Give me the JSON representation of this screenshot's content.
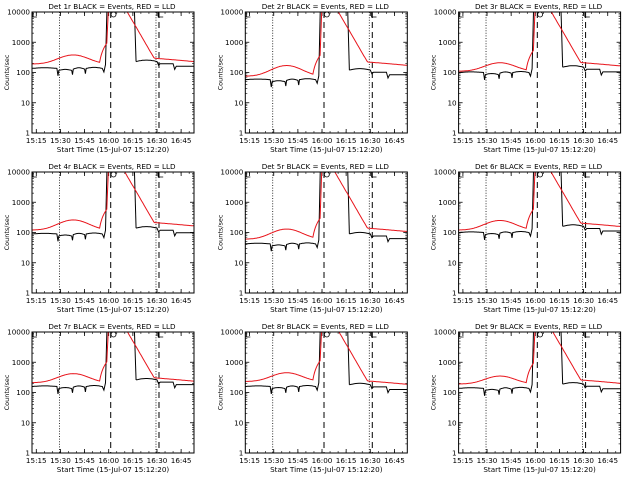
{
  "colors": {
    "events": "#000000",
    "lld": "#e8141b",
    "markers": "#000000"
  },
  "chart_data": [
    {
      "type": "line",
      "title": "Det 1r BLACK = Events, RED = LLD",
      "xlabel": "Start Time (15-Jul-07 15:12:20)",
      "ylabel": "Counts/sec",
      "x_ticks": [
        "15:15",
        "15:30",
        "15:45",
        "16:00",
        "16:15",
        "16:30",
        "16:45"
      ],
      "y_ticks": [
        "1",
        "10",
        "100",
        "1000",
        "10000"
      ],
      "ylim": [
        1,
        10000
      ],
      "log_y": true,
      "dotted_lines": [
        "15:30",
        "16:30"
      ],
      "dashed_lines": [
        "16:00",
        "16:30"
      ],
      "events_level": 130,
      "lld_level": 190,
      "lld_peak": 380,
      "events_after": 230,
      "lld_after": 320
    },
    {
      "type": "line",
      "title": "Det 2r BLACK = Events, RED = LLD",
      "xlabel": "Start Time (15-Jul-07 15:12:20)",
      "ylabel": "Counts/sec",
      "x_ticks": [
        "15:15",
        "15:30",
        "15:45",
        "16:00",
        "16:15",
        "16:30",
        "16:45"
      ],
      "y_ticks": [
        "1",
        "10",
        "100",
        "1000",
        "10000"
      ],
      "ylim": [
        1,
        10000
      ],
      "log_y": true,
      "dotted_lines": [
        "15:30",
        "16:30"
      ],
      "dashed_lines": [
        "16:00",
        "16:30"
      ],
      "events_level": 55,
      "lld_level": 75,
      "lld_peak": 170,
      "events_after": 120,
      "lld_after": 240
    },
    {
      "type": "line",
      "title": "Det 3r BLACK = Events, RED = LLD",
      "xlabel": "Start Time (15-Jul-07 15:12:20)",
      "ylabel": "Counts/sec",
      "x_ticks": [
        "15:15",
        "15:30",
        "15:45",
        "16:00",
        "16:15",
        "16:30",
        "16:45"
      ],
      "y_ticks": [
        "1",
        "10",
        "100",
        "1000",
        "10000"
      ],
      "ylim": [
        1,
        10000
      ],
      "log_y": true,
      "dotted_lines": [
        "15:30",
        "16:30"
      ],
      "dashed_lines": [
        "16:00",
        "16:30"
      ],
      "events_level": 95,
      "lld_level": 110,
      "lld_peak": 210,
      "events_after": 150,
      "lld_after": 230
    },
    {
      "type": "line",
      "title": "Det 4r BLACK = Events, RED = LLD",
      "xlabel": "Start Time (15-Jul-07 15:12:20)",
      "ylabel": "Counts/sec",
      "x_ticks": [
        "15:15",
        "15:30",
        "15:45",
        "16:00",
        "16:15",
        "16:30",
        "16:45"
      ],
      "y_ticks": [
        "1",
        "10",
        "100",
        "1000",
        "10000"
      ],
      "ylim": [
        1,
        10000
      ],
      "log_y": true,
      "dotted_lines": [
        "15:30",
        "16:30"
      ],
      "dashed_lines": [
        "16:00",
        "16:30"
      ],
      "events_level": 85,
      "lld_level": 120,
      "lld_peak": 260,
      "events_after": 140,
      "lld_after": 230
    },
    {
      "type": "line",
      "title": "Det 5r BLACK = Events, RED = LLD",
      "xlabel": "Start Time (15-Jul-07 15:12:20)",
      "ylabel": "Counts/sec",
      "x_ticks": [
        "15:15",
        "15:30",
        "15:45",
        "16:00",
        "16:15",
        "16:30",
        "16:45"
      ],
      "y_ticks": [
        "1",
        "10",
        "100",
        "1000",
        "10000"
      ],
      "ylim": [
        1,
        10000
      ],
      "log_y": true,
      "dotted_lines": [
        "15:30",
        "16:30"
      ],
      "dashed_lines": [
        "16:00",
        "16:30"
      ],
      "events_level": 40,
      "lld_level": 60,
      "lld_peak": 130,
      "events_after": 90,
      "lld_after": 150
    },
    {
      "type": "line",
      "title": "Det 6r BLACK = Events, RED = LLD",
      "xlabel": "Start Time (15-Jul-07 15:12:20)",
      "ylabel": "Counts/sec",
      "x_ticks": [
        "15:15",
        "15:30",
        "15:45",
        "16:00",
        "16:15",
        "16:30",
        "16:45"
      ],
      "y_ticks": [
        "1",
        "10",
        "100",
        "1000",
        "10000"
      ],
      "ylim": [
        1,
        10000
      ],
      "log_y": true,
      "dotted_lines": [
        "15:30",
        "16:30"
      ],
      "dashed_lines": [
        "16:00",
        "16:30"
      ],
      "events_level": 95,
      "lld_level": 120,
      "lld_peak": 250,
      "events_after": 160,
      "lld_after": 220
    },
    {
      "type": "line",
      "title": "Det 7r BLACK = Events, RED = LLD",
      "xlabel": "Start Time (15-Jul-07 15:12:20)",
      "ylabel": "Counts/sec",
      "x_ticks": [
        "15:15",
        "15:30",
        "15:45",
        "16:00",
        "16:15",
        "16:30",
        "16:45"
      ],
      "y_ticks": [
        "1",
        "10",
        "100",
        "1000",
        "10000"
      ],
      "ylim": [
        1,
        10000
      ],
      "log_y": true,
      "dotted_lines": [
        "15:30",
        "16:30"
      ],
      "dashed_lines": [
        "16:00",
        "16:30"
      ],
      "events_level": 150,
      "lld_level": 210,
      "lld_peak": 420,
      "events_after": 260,
      "lld_after": 330
    },
    {
      "type": "line",
      "title": "Det 8r BLACK = Events, RED = LLD",
      "xlabel": "Start Time (15-Jul-07 15:12:20)",
      "ylabel": "Counts/sec",
      "x_ticks": [
        "15:15",
        "15:30",
        "15:45",
        "16:00",
        "16:15",
        "16:30",
        "16:45"
      ],
      "y_ticks": [
        "1",
        "10",
        "100",
        "1000",
        "10000"
      ],
      "ylim": [
        1,
        10000
      ],
      "log_y": true,
      "dotted_lines": [
        "15:30",
        "16:30"
      ],
      "dashed_lines": [
        "16:00",
        "16:30"
      ],
      "events_level": 150,
      "lld_level": 230,
      "lld_peak": 450,
      "events_after": 180,
      "lld_after": 260
    },
    {
      "type": "line",
      "title": "Det 9r BLACK = Events, RED = LLD",
      "xlabel": "Start Time (15-Jul-07 15:12:20)",
      "ylabel": "Counts/sec",
      "x_ticks": [
        "15:15",
        "15:30",
        "15:45",
        "16:00",
        "16:15",
        "16:30",
        "16:45"
      ],
      "y_ticks": [
        "1",
        "10",
        "100",
        "1000",
        "10000"
      ],
      "ylim": [
        1,
        10000
      ],
      "log_y": true,
      "dotted_lines": [
        "15:30",
        "16:30"
      ],
      "dashed_lines": [
        "16:00",
        "16:30"
      ],
      "events_level": 130,
      "lld_level": 190,
      "lld_peak": 350,
      "events_after": 190,
      "lld_after": 280
    }
  ]
}
